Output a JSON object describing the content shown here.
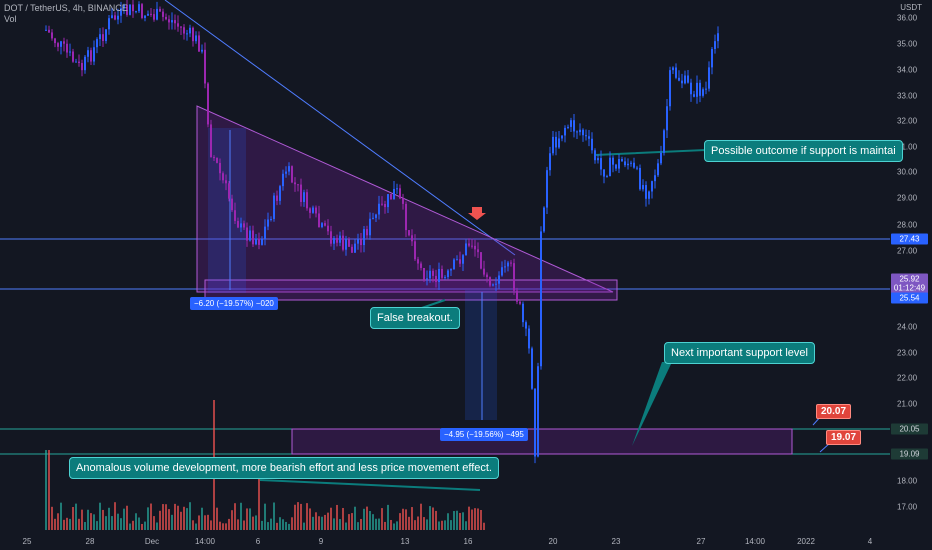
{
  "header": {
    "symbol_line": "DOT / TetherUS, 4h, BINANCE",
    "volume_label": "Vol"
  },
  "price_axis": {
    "unit": "USDT",
    "ticks": [
      "36.00",
      "35.00",
      "34.00",
      "33.00",
      "32.00",
      "31.00",
      "30.00",
      "29.00",
      "28.00",
      "27.00",
      "24.00",
      "23.00",
      "22.00",
      "21.00",
      "18.00",
      "17.00"
    ]
  },
  "price_tags": {
    "level_top": "27.43",
    "current_price": "25.92",
    "countdown": "01:12:49",
    "level_support": "25.54",
    "level_lower_a": "20.05",
    "level_lower_b": "19.09"
  },
  "time_axis": {
    "ticks": [
      "25",
      "28",
      "Dec",
      "14:00",
      "6",
      "9",
      "13",
      "16",
      "20",
      "23",
      "27",
      "14:00",
      "2022",
      "4"
    ]
  },
  "annotations": {
    "outcome": "Possible outcome if support is maintai",
    "false_breakout": "False breakout.",
    "next_support": "Next important support level",
    "volume_note": "Anomalous volume development, more bearish effort and less price movement effect.",
    "measure_left": "−6.20 (−19.57%) −020",
    "measure_right": "−4.95 (−19.56%) −495",
    "target_a": "20.07",
    "target_b": "19.07"
  },
  "colors": {
    "background": "#131722",
    "bull": "#2962ff",
    "bear": "#9c27b0",
    "volume_up": "#26a69a",
    "volume_down": "#ef5350",
    "triangle_fill": "#7b1fa2",
    "callout": "#0b7c7c",
    "tag_blue": "#2962ff",
    "tag_purple": "#7e57c2",
    "tag_green_line": "#26a69a"
  }
}
